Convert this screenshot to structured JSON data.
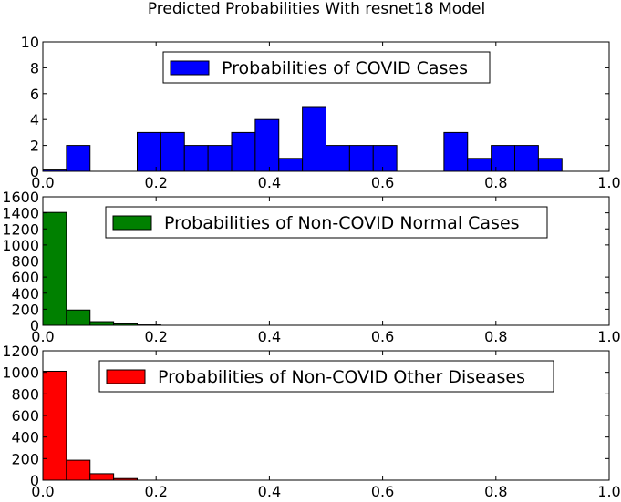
{
  "chart_data": {
    "type": "histogram",
    "title": "Predicted Probabilities With resnet18 Model",
    "bin_width": 0.04167,
    "panels": [
      {
        "legend": "Probabilities of COVID Cases",
        "color": "#0000ff",
        "ylim": [
          0,
          10
        ],
        "yticks": [
          0,
          2,
          4,
          6,
          8,
          10
        ],
        "xlim": [
          0.0,
          1.0
        ],
        "xticks": [
          "0.0",
          "0.2",
          "0.4",
          "0.6",
          "0.8",
          "1.0"
        ],
        "bin_starts": [
          0.0,
          0.04167,
          0.08333,
          0.125,
          0.16667,
          0.20833,
          0.25,
          0.29167,
          0.33333,
          0.375,
          0.41667,
          0.45833,
          0.5,
          0.54167,
          0.58333,
          0.625,
          0.66667,
          0.70833,
          0.75,
          0.79167,
          0.83333,
          0.875
        ],
        "values": [
          0.1,
          2,
          0,
          0,
          3,
          3,
          2,
          2,
          3,
          4,
          1,
          5,
          2,
          2,
          2,
          0,
          0,
          3,
          1,
          2,
          2,
          1
        ]
      },
      {
        "legend": "Probabilities of Non-COVID Normal Cases",
        "color": "#008000",
        "ylim": [
          0,
          1600
        ],
        "yticks": [
          0,
          200,
          400,
          600,
          800,
          1000,
          1200,
          1400,
          1600
        ],
        "xlim": [
          0.0,
          1.0
        ],
        "xticks": [
          "0.0",
          "0.2",
          "0.4",
          "0.6",
          "0.8",
          "1.0"
        ],
        "bin_starts": [
          0.0,
          0.04167,
          0.08333,
          0.125,
          0.16667
        ],
        "values": [
          1405,
          190,
          45,
          18,
          5
        ]
      },
      {
        "legend": "Probabilities of Non-COVID Other Diseases",
        "color": "#ff0000",
        "ylim": [
          0,
          1200
        ],
        "yticks": [
          0,
          200,
          400,
          600,
          800,
          1000,
          1200
        ],
        "xlim": [
          0.0,
          1.0
        ],
        "xticks": [
          "0.0",
          "0.2",
          "0.4",
          "0.6",
          "0.8",
          "1.0"
        ],
        "bin_starts": [
          0.0,
          0.04167,
          0.08333,
          0.125
        ],
        "values": [
          1010,
          185,
          60,
          15
        ]
      }
    ]
  }
}
